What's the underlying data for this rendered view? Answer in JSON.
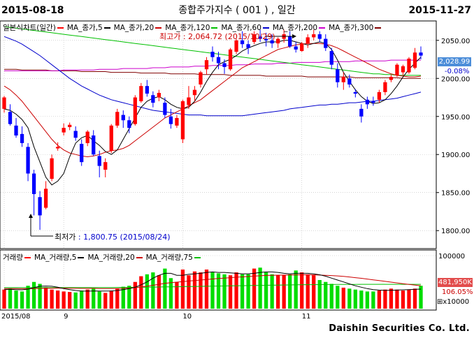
{
  "header": {
    "start_date": "2015-08-18",
    "title": "종합주가지수 ( 001 ) , 일간",
    "end_date": "2015-11-27"
  },
  "price_legend": [
    {
      "text": "일본식차트(일간)",
      "color": "#000000",
      "marker": "#ff0000"
    },
    {
      "text": "MA_종가,5",
      "color": "#000000",
      "marker": "#000000"
    },
    {
      "text": "MA_종가,20",
      "color": "#000000",
      "marker": "#cc0000"
    },
    {
      "text": "MA_종가,120",
      "color": "#000000",
      "marker": "#00c000"
    },
    {
      "text": "MA_종가,60",
      "color": "#000000",
      "marker": "#0000cc"
    },
    {
      "text": "MA_종가,200",
      "color": "#000000",
      "marker": "#cc00cc"
    },
    {
      "text": "MA_종가,300",
      "color": "#000000",
      "marker": "#800000"
    }
  ],
  "volume_legend": [
    {
      "text": "거래량",
      "color": "#000000",
      "marker": "#ff0000"
    },
    {
      "text": "MA_거래량,5",
      "color": "#000000",
      "marker": "#000000"
    },
    {
      "text": "MA_거래량,20",
      "color": "#000000",
      "marker": "#cc0000"
    },
    {
      "text": "MA_거래량,75",
      "color": "#000000",
      "marker": "#00c000"
    }
  ],
  "annotations": {
    "high": "최고가 : 2,064.72 (2015/10/29)",
    "low_prefix": "최저가",
    "low_value": " : 1,800.75 (2015/08/24)"
  },
  "price_badge": {
    "value": "2,028.99",
    "change": "-0.08%"
  },
  "volume_badges": {
    "top": "481,950K",
    "pct": "106.05%",
    "unit": "x10000"
  },
  "footer": {
    "company": "Daishin Securities Co. Ltd."
  },
  "colors": {
    "up": "#ff0000",
    "down": "#0000ff",
    "vol_up": "#ff0000",
    "vol_down": "#00dd00",
    "ma5": "#000000",
    "ma20": "#cc0000",
    "ma60": "#0000cc",
    "ma120": "#00c000",
    "ma200": "#cc00cc",
    "ma300": "#800000",
    "badge": "#4d8ed9"
  },
  "chart_data": [
    {
      "type": "candlestick",
      "title": "종합주가지수 ( 001 ) , 일간",
      "ylim": [
        1780,
        2070
      ],
      "y_ticks": [
        1800,
        1850,
        1900,
        1950,
        2000,
        2050
      ],
      "y_tick_labels": [
        "1800.00",
        "1850.00",
        "1900.00",
        "1950.00",
        "2000.00",
        "2050.00"
      ],
      "x_tick_labels": [
        {
          "index": 0,
          "label": "2015/08"
        },
        {
          "index": 10,
          "label": "9"
        },
        {
          "index": 30,
          "label": "10"
        },
        {
          "index": 50,
          "label": "11"
        }
      ],
      "ohlc": [
        [
          1960,
          1977,
          1955,
          1975
        ],
        [
          1956,
          1966,
          1938,
          1940
        ],
        [
          1938,
          1948,
          1922,
          1925
        ],
        [
          1927,
          1937,
          1910,
          1915
        ],
        [
          1910,
          1915,
          1865,
          1875
        ],
        [
          1875,
          1880,
          1820,
          1848
        ],
        [
          1844,
          1852,
          1801,
          1820
        ],
        [
          1830,
          1865,
          1828,
          1855
        ],
        [
          1868,
          1900,
          1865,
          1895
        ],
        [
          1908,
          1916,
          1905,
          1910
        ],
        [
          1929,
          1941,
          1925,
          1935
        ],
        [
          1936,
          1942,
          1932,
          1939
        ],
        [
          1931,
          1937,
          1918,
          1922
        ],
        [
          1914,
          1920,
          1885,
          1890
        ],
        [
          1915,
          1932,
          1911,
          1930
        ],
        [
          1925,
          1932,
          1898,
          1900
        ],
        [
          1898,
          1905,
          1870,
          1885
        ],
        [
          1880,
          1895,
          1870,
          1890
        ],
        [
          1905,
          1940,
          1902,
          1938
        ],
        [
          1938,
          1960,
          1935,
          1956
        ],
        [
          1952,
          1958,
          1935,
          1945
        ],
        [
          1945,
          1950,
          1928,
          1935
        ],
        [
          1940,
          1978,
          1938,
          1975
        ],
        [
          1970,
          1994,
          1968,
          1990
        ],
        [
          1990,
          1998,
          1976,
          1980
        ],
        [
          1978,
          1983,
          1962,
          1968
        ],
        [
          1975,
          1985,
          1970,
          1981
        ],
        [
          1968,
          1975,
          1948,
          1952
        ],
        [
          1950,
          1960,
          1934,
          1940
        ],
        [
          1938,
          1952,
          1935,
          1948
        ],
        [
          1920,
          1972,
          1915,
          1970
        ],
        [
          1965,
          1990,
          1960,
          1975
        ],
        [
          1978,
          1990,
          1970,
          1985
        ],
        [
          1992,
          2010,
          1988,
          2008
        ],
        [
          2012,
          2028,
          2005,
          2024
        ],
        [
          2035,
          2042,
          2022,
          2028
        ],
        [
          2028,
          2035,
          2012,
          2020
        ],
        [
          2020,
          2025,
          2006,
          2015
        ],
        [
          2012,
          2040,
          2010,
          2038
        ],
        [
          2035,
          2052,
          2032,
          2050
        ],
        [
          2050,
          2062,
          2040,
          2045
        ],
        [
          2045,
          2050,
          2032,
          2040
        ],
        [
          2048,
          2062,
          2045,
          2058
        ],
        [
          2055,
          2064,
          2048,
          2052
        ],
        [
          2052,
          2060,
          2042,
          2050
        ],
        [
          2050,
          2058,
          2040,
          2046
        ],
        [
          2046,
          2054,
          2040,
          2052
        ],
        [
          2052,
          2064,
          2047,
          2058
        ],
        [
          2055,
          2062,
          2040,
          2042
        ],
        [
          2042,
          2048,
          2034,
          2038
        ],
        [
          2036,
          2048,
          2035,
          2046
        ],
        [
          2046,
          2058,
          2040,
          2054
        ],
        [
          2054,
          2064,
          2050,
          2058
        ],
        [
          2058,
          2062,
          2048,
          2052
        ],
        [
          2052,
          2058,
          2036,
          2040
        ],
        [
          2036,
          2040,
          2012,
          2018
        ],
        [
          2012,
          2020,
          1988,
          1995
        ],
        [
          1995,
          2008,
          1985,
          2002
        ],
        [
          2000,
          2005,
          1988,
          1992
        ],
        [
          1982,
          1986,
          1975,
          1980
        ],
        [
          1960,
          1966,
          1942,
          1950
        ],
        [
          1972,
          1976,
          1960,
          1966
        ],
        [
          1970,
          1976,
          1964,
          1968
        ],
        [
          1972,
          1985,
          1968,
          1982
        ],
        [
          1982,
          1998,
          1978,
          1995
        ],
        [
          1998,
          2005,
          1995,
          2002
        ],
        [
          2004,
          2020,
          2002,
          2018
        ],
        [
          2008,
          2018,
          2004,
          2016
        ],
        [
          2008,
          2028,
          2006,
          2026
        ],
        [
          2014,
          2040,
          2012,
          2034
        ],
        [
          2034,
          2042,
          2025,
          2030
        ]
      ],
      "ma5": [
        1960,
        1958,
        1953,
        1946,
        1935,
        1910,
        1890,
        1870,
        1860,
        1865,
        1875,
        1897,
        1915,
        1922,
        1925,
        1918,
        1912,
        1904,
        1900,
        1906,
        1920,
        1934,
        1948,
        1962,
        1970,
        1974,
        1976,
        1972,
        1966,
        1962,
        1960,
        1962,
        1970,
        1982,
        1996,
        2008,
        2018,
        2022,
        2025,
        2030,
        2036,
        2040,
        2043,
        2046,
        2048,
        2048,
        2048,
        2050,
        2050,
        2048,
        2046,
        2044,
        2046,
        2048,
        2046,
        2038,
        2024,
        2008,
        1996,
        1985,
        1976,
        1970,
        1967,
        1968,
        1972,
        1980,
        1990,
        2002,
        2012,
        2020,
        2028
      ],
      "ma20": [
        1990,
        1985,
        1978,
        1970,
        1960,
        1950,
        1940,
        1930,
        1920,
        1912,
        1906,
        1902,
        1900,
        1898,
        1897,
        1898,
        1900,
        1903,
        1905,
        1906,
        1908,
        1912,
        1918,
        1924,
        1930,
        1936,
        1942,
        1948,
        1952,
        1956,
        1960,
        1964,
        1968,
        1972,
        1978,
        1984,
        1990,
        1996,
        2002,
        2008,
        2014,
        2018,
        2022,
        2026,
        2030,
        2034,
        2038,
        2040,
        2042,
        2044,
        2045,
        2046,
        2046,
        2046,
        2045,
        2043,
        2040,
        2036,
        2032,
        2028,
        2024,
        2020,
        2016,
        2012,
        2009,
        2006,
        2004,
        2003,
        2002,
        2002,
        2003
      ],
      "ma60": [
        2055,
        2052,
        2049,
        2045,
        2040,
        2035,
        2030,
        2024,
        2018,
        2012,
        2006,
        2000,
        1995,
        1990,
        1986,
        1982,
        1978,
        1975,
        1972,
        1970,
        1968,
        1966,
        1964,
        1962,
        1960,
        1958,
        1957,
        1956,
        1955,
        1954,
        1953,
        1952,
        1952,
        1952,
        1951,
        1951,
        1951,
        1951,
        1951,
        1951,
        1951,
        1952,
        1953,
        1954,
        1955,
        1956,
        1957,
        1958,
        1960,
        1961,
        1962,
        1963,
        1964,
        1965,
        1965,
        1966,
        1966,
        1967,
        1968,
        1968,
        1969,
        1970,
        1970,
        1971,
        1972,
        1973,
        1974,
        1976,
        1978,
        1980,
        1982
      ],
      "ma120": [
        2068,
        2067,
        2066,
        2065,
        2064,
        2063,
        2062,
        2061,
        2060,
        2059,
        2058,
        2057,
        2056,
        2055,
        2054,
        2053,
        2052,
        2051,
        2050,
        2049,
        2048,
        2047,
        2046,
        2045,
        2044,
        2043,
        2042,
        2041,
        2040,
        2039,
        2038,
        2037,
        2036,
        2035,
        2034,
        2033,
        2032,
        2031,
        2030,
        2029,
        2028,
        2027,
        2026,
        2025,
        2024,
        2023,
        2022,
        2021,
        2020,
        2019,
        2018,
        2017,
        2016,
        2015,
        2014,
        2013,
        2012,
        2011,
        2010,
        2009,
        2008,
        2007,
        2006,
        2006,
        2005,
        2005,
        2004,
        2004,
        2004,
        2004,
        2004
      ],
      "ma200": [
        2010,
        2010,
        2010,
        2010,
        2010,
        2010,
        2010,
        2010,
        2010,
        2010,
        2011,
        2011,
        2011,
        2011,
        2011,
        2011,
        2012,
        2012,
        2012,
        2012,
        2013,
        2013,
        2013,
        2013,
        2013,
        2014,
        2014,
        2014,
        2015,
        2015,
        2015,
        2015,
        2016,
        2016,
        2016,
        2017,
        2017,
        2017,
        2017,
        2018,
        2018,
        2018,
        2019,
        2019,
        2019,
        2019,
        2020,
        2020,
        2020,
        2021,
        2021,
        2021,
        2021,
        2021,
        2022,
        2022,
        2022,
        2022,
        2022,
        2023,
        2023,
        2023,
        2023,
        2023,
        2023,
        2024,
        2024,
        2024,
        2024,
        2024,
        2024
      ],
      "ma300": [
        2012,
        2012,
        2012,
        2011,
        2011,
        2011,
        2011,
        2011,
        2010,
        2010,
        2010,
        2010,
        2010,
        2009,
        2009,
        2009,
        2009,
        2009,
        2008,
        2008,
        2008,
        2008,
        2008,
        2007,
        2007,
        2007,
        2007,
        2007,
        2006,
        2006,
        2006,
        2006,
        2006,
        2005,
        2005,
        2005,
        2005,
        2005,
        2004,
        2004,
        2004,
        2004,
        2004,
        2004,
        2003,
        2003,
        2003,
        2003,
        2003,
        2003,
        2003,
        2002,
        2002,
        2002,
        2002,
        2002,
        2002,
        2002,
        2002,
        2001,
        2001,
        2001,
        2001,
        2001,
        2001,
        2001,
        2001,
        2000,
        2000,
        2000,
        2000
      ]
    },
    {
      "type": "bar",
      "title": "거래량",
      "ylim": [
        0,
        1200000
      ],
      "y_ticks": [
        100000
      ],
      "y_tick_labels": [
        "100000"
      ],
      "volume": [
        400,
        420,
        380,
        360,
        480,
        560,
        520,
        450,
        400,
        380,
        360,
        350,
        340,
        380,
        400,
        420,
        360,
        330,
        380,
        420,
        460,
        480,
        560,
        680,
        720,
        760,
        700,
        840,
        640,
        560,
        820,
        700,
        780,
        760,
        820,
        760,
        740,
        720,
        700,
        760,
        720,
        720,
        840,
        860,
        760,
        720,
        700,
        700,
        720,
        800,
        760,
        720,
        700,
        600,
        560,
        520,
        480,
        440,
        420,
        400,
        380,
        360,
        360,
        380,
        400,
        420,
        400,
        380,
        400,
        420,
        480
      ],
      "vol_ma5": [
        400,
        405,
        400,
        395,
        410,
        440,
        470,
        474,
        470,
        450,
        420,
        400,
        380,
        370,
        368,
        372,
        370,
        370,
        372,
        380,
        400,
        420,
        450,
        500,
        560,
        640,
        700,
        740,
        740,
        700,
        700,
        720,
        730,
        740,
        760,
        770,
        760,
        760,
        750,
        740,
        730,
        730,
        740,
        760,
        770,
        770,
        760,
        740,
        730,
        740,
        740,
        740,
        730,
        710,
        680,
        640,
        600,
        560,
        520,
        480,
        450,
        420,
        400,
        390,
        385,
        385,
        390,
        395,
        400,
        405,
        410
      ],
      "vol_ma20": [
        420,
        420,
        420,
        418,
        418,
        420,
        424,
        426,
        428,
        430,
        430,
        428,
        426,
        424,
        424,
        424,
        422,
        420,
        420,
        420,
        424,
        430,
        440,
        454,
        470,
        490,
        510,
        530,
        546,
        556,
        568,
        580,
        590,
        600,
        612,
        622,
        632,
        640,
        650,
        660,
        666,
        674,
        682,
        690,
        696,
        700,
        702,
        704,
        706,
        708,
        710,
        710,
        708,
        704,
        700,
        694,
        686,
        676,
        664,
        650,
        636,
        620,
        604,
        588,
        572,
        556,
        540,
        524,
        508,
        494,
        480
      ],
      "vol_ma75": [
        440,
        440,
        440,
        440,
        440,
        440,
        440,
        441,
        441,
        441,
        442,
        442,
        442,
        443,
        443,
        443,
        444,
        444,
        444,
        445,
        446,
        447,
        448,
        449,
        450,
        452,
        454,
        456,
        458,
        460,
        462,
        464,
        466,
        468,
        470,
        472,
        474,
        476,
        478,
        480,
        482,
        484,
        486,
        488,
        490,
        492,
        494,
        496,
        498,
        500,
        502,
        503,
        504,
        505,
        506,
        507,
        508,
        508,
        509,
        509,
        510,
        510,
        510,
        510,
        510,
        510,
        510,
        510,
        510,
        510,
        510
      ]
    }
  ]
}
